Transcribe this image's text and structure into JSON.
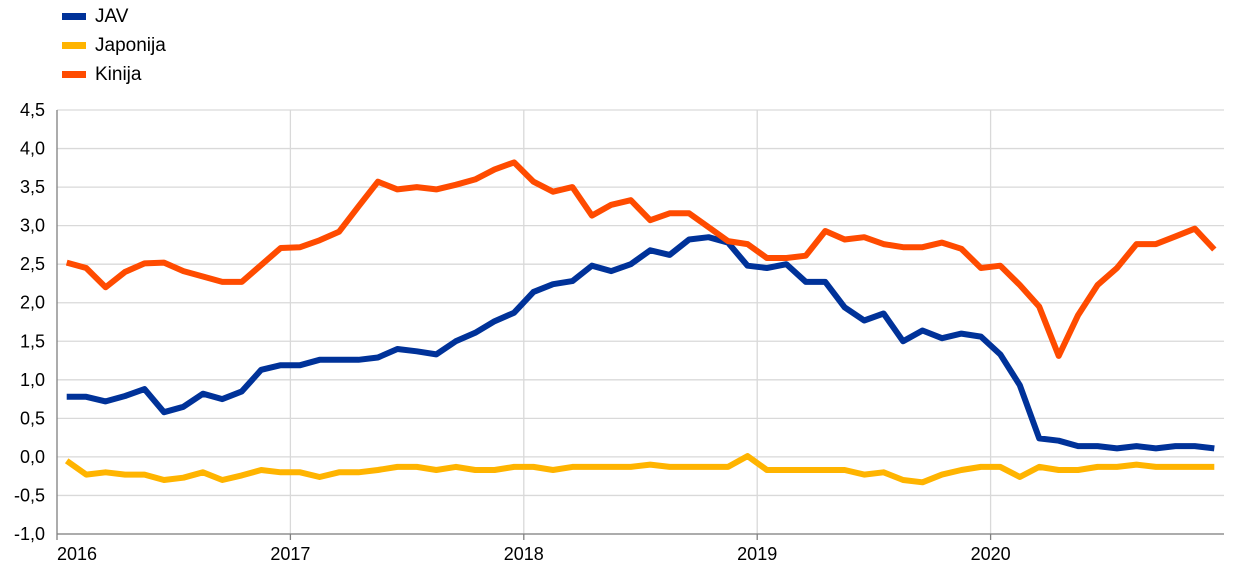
{
  "chart_data": {
    "type": "line",
    "title": "",
    "xlabel": "",
    "ylabel": "",
    "ylim": [
      -1.0,
      4.5
    ],
    "y_step": 0.5,
    "grid": true,
    "legend_position": "top-left",
    "x_ticks": [
      "2016",
      "2017",
      "2018",
      "2019",
      "2020"
    ],
    "y_tick_labels": [
      "-1,0",
      "-0,5",
      "0,0",
      "0,5",
      "1,0",
      "1,5",
      "2,0",
      "2,5",
      "3,0",
      "3,5",
      "4,0",
      "4,5"
    ],
    "x_start": "2016-01",
    "x_end": "2020-12",
    "colors": {
      "grid": "#d9d9d9",
      "axis": "#808080"
    },
    "series": [
      {
        "name": "JAV",
        "color": "#003299",
        "values": [
          0.78,
          0.78,
          0.72,
          0.79,
          0.88,
          0.58,
          0.65,
          0.82,
          0.75,
          0.85,
          1.13,
          1.19,
          1.19,
          1.26,
          1.26,
          1.26,
          1.29,
          1.4,
          1.37,
          1.33,
          1.5,
          1.61,
          1.76,
          1.87,
          2.14,
          2.24,
          2.28,
          2.48,
          2.41,
          2.5,
          2.68,
          2.62,
          2.82,
          2.85,
          2.78,
          2.48,
          2.45,
          2.5,
          2.27,
          2.27,
          1.94,
          1.77,
          1.86,
          1.5,
          1.64,
          1.54,
          1.6,
          1.56,
          1.33,
          0.93,
          0.24,
          0.21,
          0.14,
          0.14,
          0.11,
          0.14,
          0.11,
          0.14,
          0.14,
          0.11
        ]
      },
      {
        "name": "Japonija",
        "color": "#ffb400",
        "values": [
          -0.05,
          -0.23,
          -0.2,
          -0.23,
          -0.23,
          -0.3,
          -0.27,
          -0.2,
          -0.3,
          -0.24,
          -0.17,
          -0.2,
          -0.2,
          -0.26,
          -0.2,
          -0.2,
          -0.17,
          -0.13,
          -0.13,
          -0.17,
          -0.13,
          -0.17,
          -0.17,
          -0.13,
          -0.13,
          -0.17,
          -0.13,
          -0.13,
          -0.13,
          -0.13,
          -0.1,
          -0.13,
          -0.13,
          -0.13,
          -0.13,
          0.01,
          -0.17,
          -0.17,
          -0.17,
          -0.17,
          -0.17,
          -0.23,
          -0.2,
          -0.3,
          -0.33,
          -0.23,
          -0.17,
          -0.13,
          -0.13,
          -0.26,
          -0.13,
          -0.17,
          -0.17,
          -0.13,
          -0.13,
          -0.1,
          -0.13,
          -0.13,
          -0.13,
          -0.13
        ]
      },
      {
        "name": "Kinija",
        "color": "#ff4b00",
        "values": [
          2.52,
          2.45,
          2.2,
          2.4,
          2.51,
          2.52,
          2.41,
          2.34,
          2.27,
          2.27,
          2.49,
          2.71,
          2.72,
          2.81,
          2.92,
          3.25,
          3.57,
          3.47,
          3.5,
          3.47,
          3.53,
          3.6,
          3.73,
          3.82,
          3.57,
          3.44,
          3.5,
          3.13,
          3.27,
          3.33,
          3.07,
          3.16,
          3.16,
          2.98,
          2.8,
          2.76,
          2.58,
          2.58,
          2.61,
          2.93,
          2.82,
          2.85,
          2.76,
          2.72,
          2.72,
          2.78,
          2.7,
          2.45,
          2.48,
          2.23,
          1.95,
          1.31,
          1.84,
          2.23,
          2.45,
          2.76,
          2.76,
          2.86,
          2.96,
          2.69
        ]
      }
    ]
  }
}
